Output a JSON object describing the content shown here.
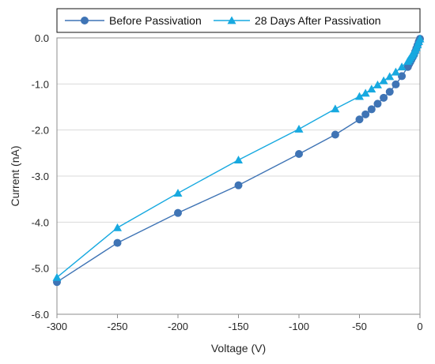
{
  "chart_data": {
    "type": "line",
    "title": "",
    "xlabel": "Voltage (V)",
    "ylabel": "Current (nA)",
    "xlim": [
      -300,
      0
    ],
    "ylim": [
      -6.0,
      0.0
    ],
    "xticks": [
      -300,
      -250,
      -200,
      -150,
      -100,
      -50,
      0
    ],
    "yticks": [
      0.0,
      -1.0,
      -2.0,
      -3.0,
      -4.0,
      -5.0,
      -6.0
    ],
    "xtick_labels": [
      "-300",
      "-250",
      "-200",
      "-150",
      "-100",
      "-50",
      "0"
    ],
    "ytick_labels": [
      "0.0",
      "-1.0",
      "-2.0",
      "-3.0",
      "-4.0",
      "-5.0",
      "-6.0"
    ],
    "grid": "horizontal",
    "legend_position": "top",
    "series": [
      {
        "name": "Before Passivation",
        "color": "#3f74b5",
        "marker": "circle",
        "x": [
          -300,
          -250,
          -200,
          -150,
          -100,
          -70,
          -50,
          -45,
          -40,
          -35,
          -30,
          -25,
          -20,
          -15,
          -10,
          -9,
          -8,
          -7,
          -6,
          -5,
          -4,
          -3,
          -2,
          -1,
          0
        ],
        "y": [
          -5.3,
          -4.45,
          -3.8,
          -3.2,
          -2.52,
          -2.1,
          -1.77,
          -1.66,
          -1.55,
          -1.43,
          -1.3,
          -1.17,
          -1.01,
          -0.83,
          -0.63,
          -0.57,
          -0.52,
          -0.47,
          -0.42,
          -0.37,
          -0.3,
          -0.23,
          -0.16,
          -0.08,
          -0.02
        ]
      },
      {
        "name": "28 Days After Passivation",
        "color": "#17a9e0",
        "marker": "triangle",
        "x": [
          -300,
          -250,
          -200,
          -150,
          -100,
          -70,
          -50,
          -45,
          -40,
          -35,
          -30,
          -25,
          -20,
          -15,
          -10,
          -9,
          -8,
          -7,
          -6,
          -5,
          -4,
          -3,
          -2,
          -1,
          0
        ],
        "y": [
          -5.2,
          -4.12,
          -3.37,
          -2.65,
          -1.98,
          -1.54,
          -1.27,
          -1.2,
          -1.11,
          -1.02,
          -0.93,
          -0.84,
          -0.74,
          -0.63,
          -0.51,
          -0.47,
          -0.43,
          -0.39,
          -0.35,
          -0.31,
          -0.26,
          -0.21,
          -0.15,
          -0.08,
          -0.02
        ]
      }
    ]
  }
}
